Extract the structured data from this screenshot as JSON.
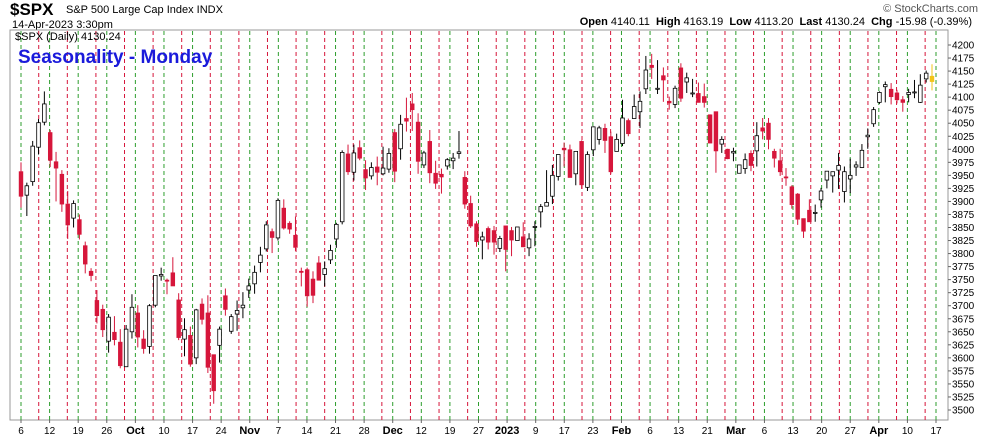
{
  "header": {
    "symbol": "$SPX",
    "description": "S&P 500 Large Cap Index INDX",
    "brand": "© StockCharts.com",
    "datetime": "14-Apr-2023 3:30pm",
    "open_label": "Open",
    "open": "4140.11",
    "high_label": "High",
    "high": "4163.19",
    "low_label": "Low",
    "low": "4113.20",
    "last_label": "Last",
    "last": "4130.24",
    "chg_label": "Chg",
    "chg": "-15.98 (-0.39%)"
  },
  "chart_data": {
    "type": "candlestick",
    "title": "Seasonality - Monday",
    "legend": "$SPX (Daily) 4130.24",
    "ylim": [
      3500,
      4200
    ],
    "yticks": [
      3500,
      3525,
      3550,
      3575,
      3600,
      3625,
      3650,
      3675,
      3700,
      3725,
      3750,
      3775,
      3800,
      3825,
      3850,
      3875,
      3900,
      3925,
      3950,
      3975,
      4000,
      4025,
      4050,
      4075,
      4100,
      4125,
      4150,
      4175,
      4200
    ],
    "x_tick_labels": [
      "6",
      "12",
      "19",
      "26",
      "Oct",
      "10",
      "17",
      "24",
      "Nov",
      "7",
      "14",
      "21",
      "28",
      "Dec",
      "12",
      "19",
      "27",
      "2023",
      "9",
      "17",
      "23",
      "Feb",
      "6",
      "13",
      "21",
      "Mar",
      "6",
      "13",
      "20",
      "27",
      "Apr",
      "10",
      "17"
    ],
    "bold_tick_labels": [
      "Oct",
      "Nov",
      "Dec",
      "2023",
      "Feb",
      "Mar",
      "Apr"
    ],
    "grid": false,
    "vertical_markers": "dashed lines: green on Mondays, red on sessions before them",
    "colors": {
      "up": "#ffffff",
      "down": "#d6163b",
      "up_outline": "#000000",
      "mark_green": "#2e9e2e",
      "mark_red": "#d6163b",
      "title": "#1a1adb",
      "current": "#f2c418"
    },
    "candles_ohlc": [
      [
        3957,
        3975,
        3888,
        3910
      ],
      [
        3912,
        3936,
        3872,
        3930
      ],
      [
        3938,
        4016,
        3930,
        4006
      ],
      [
        4004,
        4058,
        3990,
        4051
      ],
      [
        4052,
        4111,
        4046,
        4087
      ],
      [
        4032,
        4037,
        3966,
        3979
      ],
      [
        3976,
        3995,
        3900,
        3964
      ],
      [
        3952,
        3960,
        3880,
        3895
      ],
      [
        3895,
        3920,
        3828,
        3855
      ],
      [
        3868,
        3902,
        3850,
        3896
      ],
      [
        3865,
        3875,
        3827,
        3837
      ],
      [
        3815,
        3823,
        3762,
        3780
      ],
      [
        3766,
        3772,
        3747,
        3758
      ],
      [
        3710,
        3730,
        3666,
        3681
      ],
      [
        3693,
        3702,
        3640,
        3654
      ],
      [
        3632,
        3684,
        3610,
        3678
      ],
      [
        3649,
        3680,
        3624,
        3635
      ],
      [
        3630,
        3655,
        3580,
        3585
      ],
      [
        3583,
        3663,
        3583,
        3655
      ],
      [
        3650,
        3722,
        3637,
        3697
      ],
      [
        3686,
        3701,
        3620,
        3640
      ],
      [
        3636,
        3653,
        3608,
        3618
      ],
      [
        3622,
        3703,
        3608,
        3700
      ],
      [
        3701,
        3755,
        3697,
        3758
      ],
      [
        3757,
        3773,
        3748,
        3760
      ],
      [
        3749,
        3752,
        3722,
        3748
      ],
      [
        3763,
        3793,
        3738,
        3738
      ],
      [
        3711,
        3724,
        3634,
        3639
      ],
      [
        3636,
        3676,
        3603,
        3654
      ],
      [
        3643,
        3660,
        3583,
        3588
      ],
      [
        3600,
        3694,
        3588,
        3692
      ],
      [
        3703,
        3714,
        3664,
        3674
      ],
      [
        3686,
        3720,
        3571,
        3582
      ],
      [
        3606,
        3606,
        3512,
        3537
      ],
      [
        3624,
        3660,
        3591,
        3655
      ],
      [
        3719,
        3733,
        3681,
        3693
      ],
      [
        3651,
        3684,
        3646,
        3679
      ],
      [
        3684,
        3710,
        3652,
        3691
      ],
      [
        3696,
        3726,
        3676,
        3701
      ],
      [
        3730,
        3752,
        3715,
        3738
      ],
      [
        3742,
        3777,
        3723,
        3764
      ],
      [
        3783,
        3813,
        3764,
        3797
      ],
      [
        3809,
        3862,
        3804,
        3855
      ],
      [
        3842,
        3848,
        3801,
        3831
      ],
      [
        3830,
        3906,
        3825,
        3902
      ],
      [
        3887,
        3904,
        3846,
        3849
      ],
      [
        3858,
        3862,
        3838,
        3847
      ],
      [
        3835,
        3871,
        3805,
        3812
      ],
      [
        3766,
        3773,
        3737,
        3764
      ],
      [
        3769,
        3773,
        3698,
        3719
      ],
      [
        3751,
        3766,
        3705,
        3720
      ],
      [
        3782,
        3795,
        3750,
        3749
      ],
      [
        3760,
        3785,
        3737,
        3771
      ],
      [
        3788,
        3817,
        3780,
        3806
      ],
      [
        3828,
        3859,
        3811,
        3856
      ],
      [
        3861,
        3998,
        3856,
        3994
      ],
      [
        3991,
        4009,
        3951,
        3957
      ],
      [
        3956,
        4009,
        3940,
        3993
      ],
      [
        4003,
        4017,
        3979,
        3983
      ],
      [
        3961,
        3979,
        3922,
        3945
      ],
      [
        3949,
        3975,
        3942,
        3965
      ],
      [
        3966,
        3986,
        3931,
        3956
      ],
      [
        3953,
        4005,
        3950,
        3964
      ],
      [
        3962,
        4002,
        3955,
        3992
      ],
      [
        4032,
        4039,
        3937,
        3958
      ],
      [
        4001,
        4066,
        3980,
        4048
      ],
      [
        4059,
        4099,
        4034,
        4054
      ],
      [
        4087,
        4108,
        4035,
        4076
      ],
      [
        4052,
        4069,
        3953,
        3977
      ],
      [
        3970,
        3997,
        3964,
        3993
      ],
      [
        4015,
        4037,
        3935,
        3955
      ],
      [
        3954,
        3978,
        3924,
        3935
      ],
      [
        3952,
        3963,
        3915,
        3947
      ],
      [
        3968,
        3983,
        3961,
        3980
      ],
      [
        3978,
        3993,
        3962,
        3983
      ],
      [
        3992,
        4035,
        3982,
        3995
      ],
      [
        3946,
        3958,
        3886,
        3895
      ],
      [
        3896,
        3911,
        3849,
        3853
      ],
      [
        3857,
        3862,
        3813,
        3823
      ],
      [
        3826,
        3842,
        3789,
        3832
      ],
      [
        3848,
        3852,
        3808,
        3822
      ],
      [
        3844,
        3853,
        3798,
        3822
      ],
      [
        3810,
        3834,
        3803,
        3829
      ],
      [
        3853,
        3853,
        3766,
        3808
      ],
      [
        3844,
        3851,
        3795,
        3826
      ],
      [
        3825,
        3847,
        3829,
        3851
      ],
      [
        3832,
        3860,
        3826,
        3813
      ],
      [
        3811,
        3839,
        3795,
        3828
      ],
      [
        3851,
        3862,
        3814,
        3852
      ],
      [
        3880,
        3895,
        3850,
        3890
      ],
      [
        3891,
        3960,
        3891,
        3898
      ],
      [
        3910,
        3970,
        3895,
        3950
      ],
      [
        3948,
        3985,
        3940,
        3990
      ],
      [
        4002,
        4013,
        3967,
        3999
      ],
      [
        3999,
        4009,
        3960,
        3946
      ],
      [
        3953,
        3994,
        3931,
        3996
      ],
      [
        4015,
        4017,
        3924,
        3932
      ],
      [
        3927,
        3996,
        3920,
        3990
      ],
      [
        3999,
        4044,
        3987,
        4043
      ],
      [
        4019,
        4045,
        4009,
        4041
      ],
      [
        4040,
        4049,
        3993,
        4017
      ],
      [
        4024,
        4034,
        3953,
        3957
      ],
      [
        3996,
        4030,
        3999,
        4019
      ],
      [
        4011,
        4095,
        4006,
        4060
      ],
      [
        4055,
        4059,
        4025,
        4030
      ],
      [
        4059,
        4105,
        4059,
        4082
      ],
      [
        4072,
        4111,
        4041,
        4092
      ],
      [
        4116,
        4179,
        4106,
        4152
      ],
      [
        4161,
        4183,
        4135,
        4157
      ],
      [
        4115,
        4171,
        4106,
        4117
      ],
      [
        4141,
        4157,
        4091,
        4133
      ],
      [
        4092,
        4101,
        4076,
        4089
      ],
      [
        4086,
        4122,
        4079,
        4117
      ],
      [
        4156,
        4165,
        4091,
        4098
      ],
      [
        4129,
        4147,
        4108,
        4137
      ],
      [
        4108,
        4135,
        4100,
        4108
      ],
      [
        4107,
        4128,
        4097,
        4090
      ],
      [
        4101,
        4126,
        4080,
        4090
      ],
      [
        4066,
        4067,
        4039,
        4012
      ],
      [
        4072,
        4007,
        3955,
        3997
      ],
      [
        4010,
        4025,
        3993,
        4019
      ],
      [
        4000,
        4001,
        3981,
        3982
      ],
      [
        3993,
        4003,
        3977,
        3996
      ],
      [
        3954,
        3955,
        3963,
        3970
      ],
      [
        3963,
        3992,
        3953,
        3980
      ],
      [
        3992,
        3998,
        3958,
        3969
      ],
      [
        3997,
        4052,
        3967,
        4026
      ],
      [
        4041,
        4060,
        4019,
        4035
      ],
      [
        4050,
        4060,
        4000,
        4019
      ],
      [
        3996,
        4001,
        3965,
        3983
      ],
      [
        3978,
        4001,
        3949,
        3957
      ],
      [
        3947,
        3964,
        3930,
        3946
      ],
      [
        3928,
        3931,
        3886,
        3894
      ],
      [
        3914,
        3916,
        3855,
        3866
      ],
      [
        3867,
        3864,
        3830,
        3843
      ],
      [
        3883,
        3904,
        3878,
        3861
      ],
      [
        3877,
        3894,
        3861,
        3879
      ],
      [
        3903,
        3926,
        3888,
        3920
      ],
      [
        3941,
        3951,
        3925,
        3958
      ],
      [
        3949,
        3957,
        3917,
        3957
      ],
      [
        3960,
        3993,
        3924,
        3969
      ],
      [
        3919,
        3967,
        3898,
        3957
      ],
      [
        3943,
        3982,
        3916,
        3950
      ],
      [
        3966,
        3977,
        3949,
        3970
      ],
      [
        3965,
        4010,
        3964,
        3998
      ],
      [
        4024,
        4040,
        4001,
        4027
      ],
      [
        4049,
        4081,
        4043,
        4076
      ],
      [
        4090,
        4111,
        4087,
        4109
      ],
      [
        4120,
        4130,
        4090,
        4124
      ],
      [
        4115,
        4127,
        4086,
        4101
      ],
      [
        4108,
        4114,
        4088,
        4095
      ],
      [
        4095,
        4102,
        4072,
        4090
      ],
      [
        4105,
        4116,
        4090,
        4109
      ],
      [
        4110,
        4133,
        4098,
        4110
      ],
      [
        4090,
        4144,
        4089,
        4123
      ],
      [
        4135,
        4151,
        4128,
        4146
      ],
      [
        4140,
        4163,
        4113,
        4130
      ]
    ]
  }
}
